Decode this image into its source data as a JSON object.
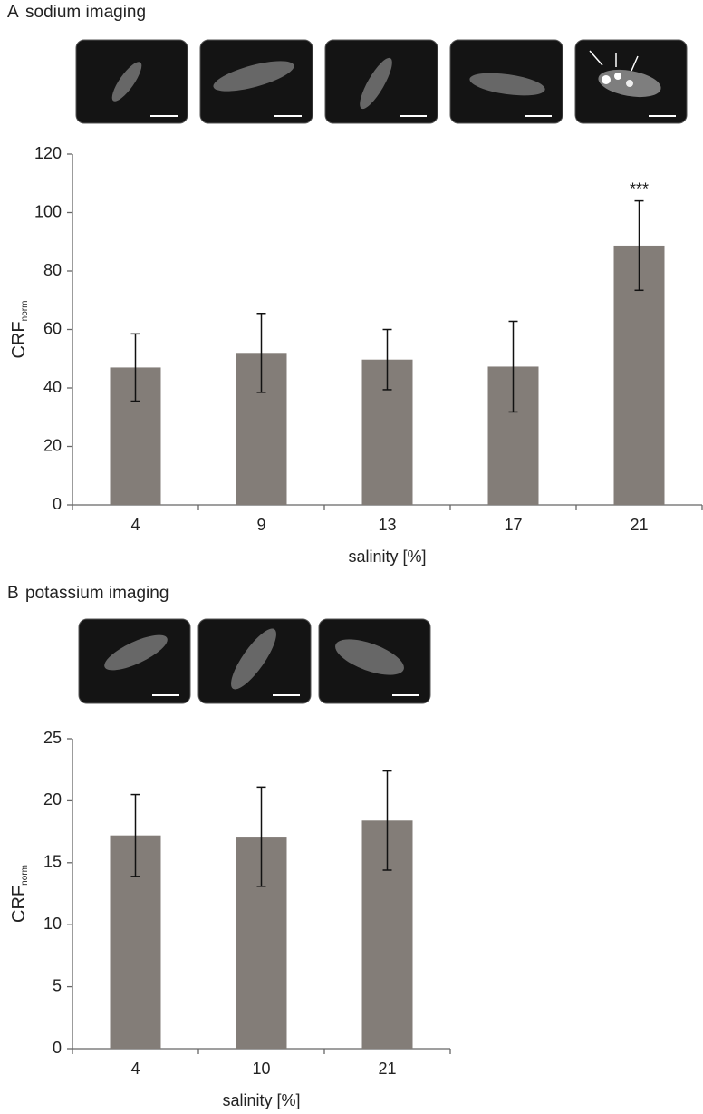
{
  "chart_data": [
    {
      "type": "bar",
      "panel": "A",
      "title": "sodium imaging",
      "y_label": "CRF",
      "y_label_sub": "norm",
      "x_label": "salinity [%]",
      "categories": [
        "4",
        "9",
        "13",
        "17",
        "21"
      ],
      "values": [
        47,
        52,
        49.7,
        47.3,
        88.7
      ],
      "errors": [
        11.5,
        13.5,
        10.3,
        15.5,
        15.3
      ],
      "value_annotations": [
        null,
        null,
        null,
        null,
        "***"
      ],
      "color": "#837d78",
      "ylim": [
        0,
        120
      ],
      "yticks": [
        0,
        20,
        40,
        60,
        80,
        100,
        120
      ]
    },
    {
      "type": "bar",
      "panel": "B",
      "title": "potassium imaging",
      "y_label": "CRF",
      "y_label_sub": "norm",
      "x_label": "salinity [%]",
      "categories": [
        "4",
        "10",
        "21"
      ],
      "values": [
        17.2,
        17.1,
        18.4
      ],
      "errors": [
        3.3,
        4.0,
        4.0
      ],
      "color": "#837d78",
      "ylim": [
        0,
        25
      ],
      "yticks": [
        0,
        5,
        10,
        15,
        20,
        25
      ]
    }
  ]
}
